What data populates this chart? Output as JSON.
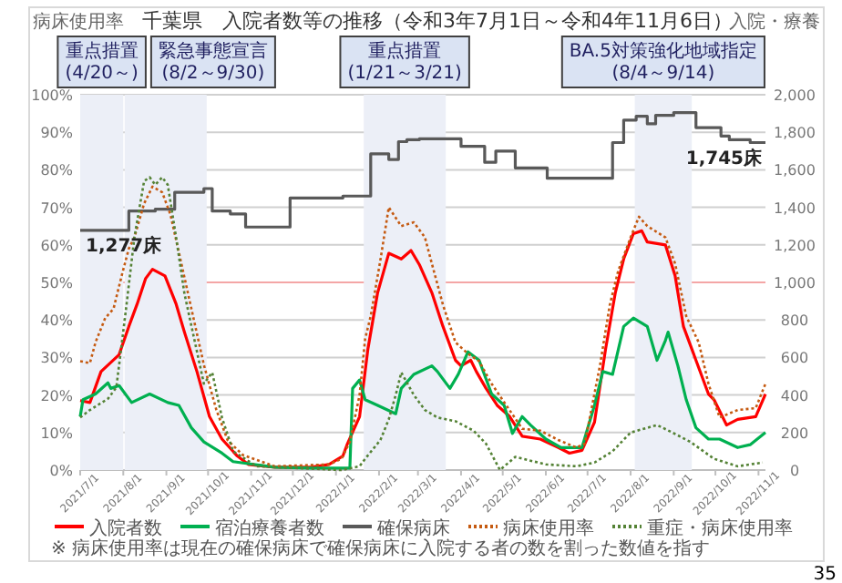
{
  "chart_data": {
    "type": "line",
    "title": "千葉県　入院者数等の推移（令和3年7月1日～令和4年11月6日）",
    "ylabel": "病床使用率",
    "y2label": "入院・療養",
    "xlim": [
      "2021-07-01",
      "2022-11-06"
    ],
    "xticks": [
      {
        "value": "2021-07-01",
        "label": "2021/7/1"
      },
      {
        "value": "2021-08-01",
        "label": "2021/8/1"
      },
      {
        "value": "2021-09-01",
        "label": "2021/9/1"
      },
      {
        "value": "2021-10-01",
        "label": "2021/10/1"
      },
      {
        "value": "2021-11-01",
        "label": "2021/11/1"
      },
      {
        "value": "2021-12-01",
        "label": "2021/12/1"
      },
      {
        "value": "2022-01-01",
        "label": "2022/1/1"
      },
      {
        "value": "2022-02-01",
        "label": "2022/2/1"
      },
      {
        "value": "2022-03-01",
        "label": "2022/3/1"
      },
      {
        "value": "2022-04-01",
        "label": "2022/4/1"
      },
      {
        "value": "2022-05-01",
        "label": "2022/5/1"
      },
      {
        "value": "2022-06-01",
        "label": "2022/6/1"
      },
      {
        "value": "2022-07-01",
        "label": "2022/7/1"
      },
      {
        "value": "2022-08-01",
        "label": "2022/8/1"
      },
      {
        "value": "2022-09-01",
        "label": "2022/9/1"
      },
      {
        "value": "2022-10-01",
        "label": "2022/10/1"
      },
      {
        "value": "2022-11-01",
        "label": "2022/11/1"
      }
    ],
    "ylim": [
      0,
      100
    ],
    "yticks": [
      {
        "value": 0,
        "label": "0%"
      },
      {
        "value": 10,
        "label": "10%"
      },
      {
        "value": 20,
        "label": "20%"
      },
      {
        "value": 30,
        "label": "30%"
      },
      {
        "value": 40,
        "label": "40%"
      },
      {
        "value": 50,
        "label": "50%"
      },
      {
        "value": 60,
        "label": "60%"
      },
      {
        "value": 70,
        "label": "70%"
      },
      {
        "value": 80,
        "label": "80%"
      },
      {
        "value": 90,
        "label": "90%"
      },
      {
        "value": 100,
        "label": "100%"
      }
    ],
    "y2lim": [
      0,
      2000
    ],
    "y2ticks": [
      0,
      200,
      400,
      600,
      800,
      {
        "value": 1000,
        "label": "1,000"
      },
      {
        "value": 1200,
        "label": "1,200"
      },
      {
        "value": 1400,
        "label": "1,400"
      },
      {
        "value": 1600,
        "label": "1,600"
      },
      {
        "value": 1800,
        "label": "1,800"
      },
      {
        "value": 2000,
        "label": "2,000"
      }
    ],
    "grid": "y",
    "legend": "bottom",
    "ref_lines": [
      {
        "axis": "y",
        "value": 50,
        "color": "#f4a6a6"
      }
    ],
    "bands": [
      {
        "axis": "x",
        "from": "2021-07-01",
        "to": "2021-08-01",
        "label": "重点措置\n(4/20～)",
        "color": "#eceff7"
      },
      {
        "axis": "x",
        "from": "2021-08-02",
        "to": "2021-09-30",
        "label": "緊急事態宣言\n(8/2～9/30)",
        "color": "#eceff7"
      },
      {
        "axis": "x",
        "from": "2022-01-21",
        "to": "2022-03-21",
        "label": "重点措置\n(1/21～3/21)",
        "color": "#eceff7"
      },
      {
        "axis": "x",
        "from": "2022-08-04",
        "to": "2022-09-14",
        "label": "BA.5対策強化地域指定\n(8/4～9/14)",
        "color": "#eceff7"
      }
    ],
    "annotations": [
      "※ 病床使用率は現在の確保病床で確保病床に入院する者の数を割った数値を指す",
      "35",
      "1,277床",
      "1,745床"
    ],
    "series": [
      {
        "name": "入院者数",
        "axis": "y2",
        "color": "#ff0000",
        "line_style": "solid",
        "x": [
          "2021-07-01",
          "2021-07-08",
          "2021-07-16",
          "2021-07-29",
          "2021-08-05",
          "2021-08-11",
          "2021-08-17",
          "2021-08-22",
          "2021-08-31",
          "2021-09-08",
          "2021-09-14",
          "2021-09-23",
          "2021-10-02",
          "2021-10-11",
          "2021-10-22",
          "2021-10-30",
          "2021-11-18",
          "2021-12-14",
          "2021-12-27",
          "2022-01-06",
          "2022-01-09",
          "2022-01-18",
          "2022-01-24",
          "2022-01-31",
          "2022-02-08",
          "2022-02-17",
          "2022-02-24",
          "2022-03-02",
          "2022-03-11",
          "2022-03-19",
          "2022-03-28",
          "2022-04-01",
          "2022-04-08",
          "2022-04-12",
          "2022-04-19",
          "2022-04-27",
          "2022-05-06",
          "2022-05-15",
          "2022-05-28",
          "2022-06-10",
          "2022-06-18",
          "2022-06-27",
          "2022-07-06",
          "2022-07-14",
          "2022-07-21",
          "2022-07-27",
          "2022-08-03",
          "2022-08-09",
          "2022-08-13",
          "2022-08-26",
          "2022-09-02",
          "2022-09-08",
          "2022-09-17",
          "2022-09-26",
          "2022-09-30",
          "2022-10-09",
          "2022-10-17",
          "2022-10-30",
          "2022-11-06"
        ],
        "values": [
          370,
          360,
          525,
          615,
          765,
          885,
          1020,
          1070,
          1035,
          885,
          735,
          525,
          285,
          165,
          75,
          30,
          15,
          15,
          30,
          75,
          135,
          285,
          645,
          945,
          1155,
          1125,
          1170,
          1095,
          945,
          765,
          585,
          555,
          585,
          525,
          435,
          345,
          285,
          180,
          165,
          120,
          90,
          105,
          255,
          645,
          945,
          1125,
          1260,
          1275,
          1215,
          1200,
          1035,
          765,
          585,
          405,
          375,
          240,
          270,
          285,
          405
        ]
      },
      {
        "name": "宿泊療養者数",
        "axis": "y2",
        "color": "#00b050",
        "line_style": "solid",
        "x": [
          "2021-07-01",
          "2021-07-03",
          "2021-07-12",
          "2021-07-21",
          "2021-07-23",
          "2021-07-29",
          "2021-08-07",
          "2021-08-20",
          "2021-09-02",
          "2021-09-10",
          "2021-09-19",
          "2021-09-28",
          "2021-10-11",
          "2021-10-19",
          "2021-11-18",
          "2021-12-14",
          "2022-01-11",
          "2022-01-13",
          "2022-01-18",
          "2022-01-22",
          "2022-01-31",
          "2022-02-13",
          "2022-02-17",
          "2022-02-26",
          "2022-03-11",
          "2022-03-15",
          "2022-03-24",
          "2022-03-30",
          "2022-04-06",
          "2022-04-14",
          "2022-04-23",
          "2022-05-02",
          "2022-05-08",
          "2022-05-15",
          "2022-05-21",
          "2022-06-01",
          "2022-06-12",
          "2022-06-27",
          "2022-07-06",
          "2022-07-12",
          "2022-07-19",
          "2022-07-27",
          "2022-08-03",
          "2022-08-13",
          "2022-08-20",
          "2022-08-26",
          "2022-08-28",
          "2022-09-04",
          "2022-09-10",
          "2022-09-17",
          "2022-09-26",
          "2022-10-04",
          "2022-10-17",
          "2022-10-26",
          "2022-11-06"
        ],
        "values": [
          285,
          375,
          405,
          465,
          435,
          450,
          360,
          405,
          360,
          345,
          225,
          150,
          90,
          45,
          15,
          10,
          10,
          435,
          480,
          375,
          345,
          300,
          435,
          510,
          555,
          525,
          435,
          510,
          630,
          585,
          405,
          345,
          195,
          285,
          240,
          165,
          120,
          120,
          345,
          525,
          510,
          765,
          810,
          765,
          585,
          690,
          735,
          555,
          375,
          225,
          165,
          165,
          120,
          135,
          200
        ]
      },
      {
        "name": "確保病床",
        "axis": "y2",
        "color": "#595959",
        "line_style": "solid",
        "x": [
          "2021-07-01",
          "2021-08-05",
          "2021-08-05",
          "2021-08-24",
          "2021-08-24",
          "2021-09-07",
          "2021-09-07",
          "2021-09-28",
          "2021-09-28",
          "2021-10-04",
          "2021-10-04",
          "2021-10-17",
          "2021-10-17",
          "2021-10-28",
          "2021-10-28",
          "2021-11-29",
          "2021-11-29",
          "2022-01-06",
          "2022-01-06",
          "2022-01-26",
          "2022-01-26",
          "2022-02-08",
          "2022-02-08",
          "2022-02-15",
          "2022-02-15",
          "2022-02-21",
          "2022-02-21",
          "2022-03-02",
          "2022-03-02",
          "2022-04-01",
          "2022-04-01",
          "2022-04-18",
          "2022-04-18",
          "2022-04-26",
          "2022-04-26",
          "2022-05-10",
          "2022-05-10",
          "2022-06-02",
          "2022-06-02",
          "2022-07-19",
          "2022-07-19",
          "2022-07-27",
          "2022-07-27",
          "2022-08-05",
          "2022-08-05",
          "2022-08-13",
          "2022-08-13",
          "2022-08-19",
          "2022-08-19",
          "2022-09-01",
          "2022-09-01",
          "2022-09-17",
          "2022-09-17",
          "2022-10-05",
          "2022-10-05",
          "2022-10-11",
          "2022-10-11",
          "2022-10-26",
          "2022-10-26",
          "2022-11-06"
        ],
        "values": [
          1277,
          1277,
          1380,
          1380,
          1390,
          1390,
          1480,
          1480,
          1500,
          1500,
          1380,
          1380,
          1365,
          1365,
          1295,
          1295,
          1450,
          1450,
          1460,
          1460,
          1685,
          1685,
          1655,
          1655,
          1750,
          1750,
          1760,
          1760,
          1765,
          1765,
          1725,
          1725,
          1640,
          1640,
          1700,
          1700,
          1610,
          1610,
          1555,
          1555,
          1745,
          1745,
          1865,
          1865,
          1885,
          1885,
          1845,
          1845,
          1890,
          1890,
          1905,
          1905,
          1825,
          1825,
          1780,
          1780,
          1760,
          1760,
          1745,
          1745
        ]
      },
      {
        "name": "病床使用率",
        "axis": "y",
        "color": "#c55a11",
        "line_style": "dotted",
        "x": [
          "2021-07-01",
          "2021-07-08",
          "2021-07-12",
          "2021-07-19",
          "2021-07-25",
          "2021-07-31",
          "2021-08-05",
          "2021-08-09",
          "2021-08-16",
          "2021-08-22",
          "2021-08-29",
          "2021-09-04",
          "2021-09-10",
          "2021-09-19",
          "2021-09-28",
          "2021-10-07",
          "2021-10-15",
          "2021-10-26",
          "2021-11-18",
          "2021-12-27",
          "2022-01-05",
          "2022-01-11",
          "2022-01-18",
          "2022-01-22",
          "2022-01-26",
          "2022-02-02",
          "2022-02-08",
          "2022-02-17",
          "2022-02-26",
          "2022-03-06",
          "2022-03-11",
          "2022-03-19",
          "2022-03-28",
          "2022-04-06",
          "2022-04-14",
          "2022-04-23",
          "2022-05-04",
          "2022-05-15",
          "2022-05-28",
          "2022-06-10",
          "2022-06-23",
          "2022-06-29",
          "2022-07-10",
          "2022-07-17",
          "2022-07-23",
          "2022-08-01",
          "2022-08-07",
          "2022-08-13",
          "2022-08-26",
          "2022-09-02",
          "2022-09-10",
          "2022-09-19",
          "2022-09-26",
          "2022-10-04",
          "2022-10-17",
          "2022-10-30",
          "2022-11-06"
        ],
        "values": [
          29,
          28.5,
          34,
          40.5,
          43,
          52,
          59,
          62,
          71,
          75.5,
          74,
          68,
          58,
          43,
          28,
          16,
          8,
          4,
          1,
          1.5,
          3,
          7.5,
          20,
          35,
          41,
          56,
          70,
          65,
          66,
          62,
          55,
          44,
          34,
          31,
          29,
          23,
          17,
          11,
          10.5,
          8,
          6,
          7,
          28,
          44,
          53,
          62,
          67.5,
          65,
          62,
          55,
          41,
          34,
          23,
          14,
          16,
          16.5,
          23
        ]
      },
      {
        "name": "重症・病床使用率",
        "axis": "y",
        "color": "#548235",
        "line_style": "dotted",
        "x": [
          "2021-07-01",
          "2021-07-08",
          "2021-07-21",
          "2021-07-27",
          "2021-08-03",
          "2021-08-09",
          "2021-08-16",
          "2021-08-20",
          "2021-08-24",
          "2021-08-29",
          "2021-09-02",
          "2021-09-08",
          "2021-09-14",
          "2021-09-21",
          "2021-09-28",
          "2021-10-04",
          "2021-10-11",
          "2021-10-19",
          "2021-11-05",
          "2022-01-05",
          "2022-01-18",
          "2022-01-22",
          "2022-02-02",
          "2022-02-08",
          "2022-02-13",
          "2022-02-17",
          "2022-02-26",
          "2022-03-06",
          "2022-03-15",
          "2022-03-28",
          "2022-04-10",
          "2022-04-19",
          "2022-04-29",
          "2022-05-10",
          "2022-06-01",
          "2022-06-23",
          "2022-07-06",
          "2022-07-19",
          "2022-08-01",
          "2022-08-20",
          "2022-08-31",
          "2022-09-13",
          "2022-09-30",
          "2022-10-17",
          "2022-11-04"
        ],
        "values": [
          14,
          16,
          19,
          22,
          43,
          62,
          77,
          78,
          76,
          78,
          76,
          62,
          47,
          35,
          23,
          26,
          14,
          5,
          1,
          0,
          1,
          3,
          8,
          13.5,
          20,
          26,
          20,
          16,
          14,
          13,
          10.5,
          7,
          0,
          3.5,
          1.5,
          1,
          2,
          5,
          10,
          12,
          10,
          7.5,
          3,
          1,
          2
        ]
      }
    ]
  }
}
